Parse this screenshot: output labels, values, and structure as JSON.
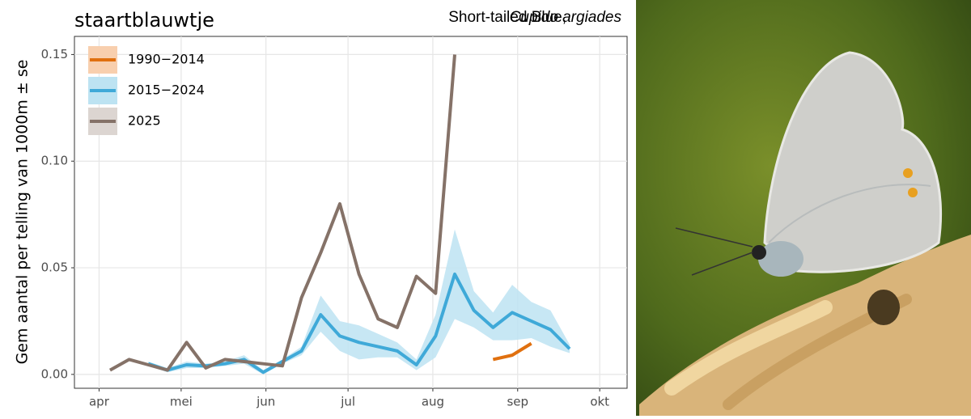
{
  "chart_data": {
    "type": "line",
    "title": "staartblauwtje",
    "subtitle": {
      "common": "Short-tailed Blue,",
      "scientific": "Cupido argiades"
    },
    "y_label": "Gem aantal per telling van 1000m ± se",
    "x": [
      95,
      102,
      109,
      116,
      123,
      130,
      137,
      144,
      151,
      158,
      165,
      172,
      179,
      186,
      193,
      200,
      207,
      214,
      221,
      228,
      235,
      242,
      249,
      256,
      263
    ],
    "xlim": [
      82,
      284
    ],
    "xticks": [
      {
        "value": 91,
        "label": "apr"
      },
      {
        "value": 121,
        "label": "mei"
      },
      {
        "value": 152,
        "label": "jun"
      },
      {
        "value": 182,
        "label": "jul"
      },
      {
        "value": 213,
        "label": "aug"
      },
      {
        "value": 244,
        "label": "sep"
      },
      {
        "value": 274,
        "label": "okt"
      }
    ],
    "ylim": [
      -0.0065,
      0.1585
    ],
    "yticks": [
      {
        "value": 0,
        "label": "0.00"
      },
      {
        "value": 0.05,
        "label": "0.05"
      },
      {
        "value": 0.1,
        "label": "0.10"
      },
      {
        "value": 0.15,
        "label": "0.15"
      }
    ],
    "grid": true,
    "legend": "top-left",
    "series": [
      {
        "name": "1990−2014",
        "color": "#e0700f",
        "band_color": "#f8cfae",
        "values": [
          null,
          null,
          null,
          null,
          null,
          null,
          null,
          null,
          null,
          null,
          null,
          null,
          null,
          null,
          null,
          null,
          null,
          null,
          null,
          null,
          0.007,
          0.009,
          0.0145,
          null,
          null
        ]
      },
      {
        "name": "2015−2024",
        "color": "#3fa9d8",
        "band_color": "#bde3f2",
        "values": [
          null,
          null,
          0.005,
          0.002,
          0.0045,
          0.004,
          0.005,
          0.007,
          0.001,
          0.006,
          0.011,
          0.028,
          0.018,
          0.015,
          0.013,
          0.011,
          0.0045,
          0.018,
          0.047,
          0.03,
          0.022,
          0.029,
          0.025,
          0.021,
          0.012
        ],
        "lower": [
          null,
          null,
          0.004,
          0.001,
          0.003,
          0.003,
          0.004,
          0.005,
          0,
          0.005,
          0.009,
          0.02,
          0.011,
          0.007,
          0.008,
          0.008,
          0.002,
          0.008,
          0.026,
          0.022,
          0.016,
          0.016,
          0.017,
          0.013,
          0.01
        ],
        "upper": [
          null,
          null,
          0.006,
          0.003,
          0.006,
          0.005,
          0.006,
          0.009,
          0.002,
          0.007,
          0.013,
          0.037,
          0.025,
          0.023,
          0.019,
          0.015,
          0.007,
          0.028,
          0.068,
          0.039,
          0.029,
          0.042,
          0.034,
          0.03,
          0.014
        ]
      },
      {
        "name": "2025",
        "color": "#857268",
        "band_color": "#dcd5d1",
        "values": [
          0.002,
          0.007,
          0.0045,
          0.002,
          0.015,
          0.003,
          0.007,
          0.006,
          0.005,
          0.004,
          0.036,
          0.057,
          0.08,
          0.047,
          0.026,
          0.022,
          0.046,
          0.038,
          0.15,
          null,
          null,
          null,
          null,
          null,
          null
        ]
      }
    ]
  }
}
